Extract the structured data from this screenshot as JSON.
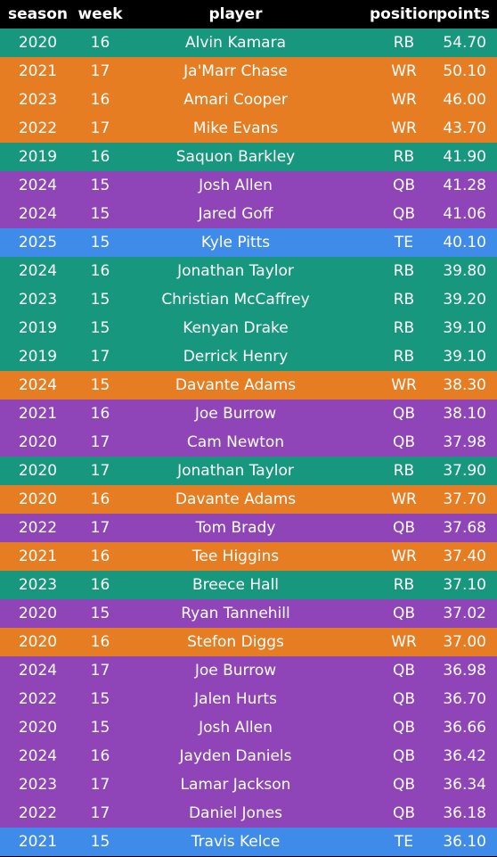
{
  "headers": {
    "season": "season",
    "week": "week",
    "player": "player",
    "position": "position",
    "points": "points"
  },
  "colors": {
    "RB": "#17977d",
    "WR": "#e67d22",
    "QB": "#8f45b8",
    "TE": "#3f8be9",
    "header_bg": "#000000",
    "text": "#ffffff"
  },
  "rows": [
    {
      "season": "2020",
      "week": "16",
      "player": "Alvin Kamara",
      "position": "RB",
      "points": "54.70"
    },
    {
      "season": "2021",
      "week": "17",
      "player": "Ja'Marr Chase",
      "position": "WR",
      "points": "50.10"
    },
    {
      "season": "2023",
      "week": "16",
      "player": "Amari Cooper",
      "position": "WR",
      "points": "46.00"
    },
    {
      "season": "2022",
      "week": "17",
      "player": "Mike Evans",
      "position": "WR",
      "points": "43.70"
    },
    {
      "season": "2019",
      "week": "16",
      "player": "Saquon Barkley",
      "position": "RB",
      "points": "41.90"
    },
    {
      "season": "2024",
      "week": "15",
      "player": "Josh Allen",
      "position": "QB",
      "points": "41.28"
    },
    {
      "season": "2024",
      "week": "15",
      "player": "Jared Goff",
      "position": "QB",
      "points": "41.06"
    },
    {
      "season": "2025",
      "week": "15",
      "player": "Kyle Pitts",
      "position": "TE",
      "points": "40.10"
    },
    {
      "season": "2024",
      "week": "16",
      "player": "Jonathan Taylor",
      "position": "RB",
      "points": "39.80"
    },
    {
      "season": "2023",
      "week": "15",
      "player": "Christian McCaffrey",
      "position": "RB",
      "points": "39.20"
    },
    {
      "season": "2019",
      "week": "15",
      "player": "Kenyan Drake",
      "position": "RB",
      "points": "39.10"
    },
    {
      "season": "2019",
      "week": "17",
      "player": "Derrick Henry",
      "position": "RB",
      "points": "39.10"
    },
    {
      "season": "2024",
      "week": "15",
      "player": "Davante Adams",
      "position": "WR",
      "points": "38.30"
    },
    {
      "season": "2021",
      "week": "16",
      "player": "Joe Burrow",
      "position": "QB",
      "points": "38.10"
    },
    {
      "season": "2020",
      "week": "17",
      "player": "Cam Newton",
      "position": "QB",
      "points": "37.98"
    },
    {
      "season": "2020",
      "week": "17",
      "player": "Jonathan Taylor",
      "position": "RB",
      "points": "37.90"
    },
    {
      "season": "2020",
      "week": "16",
      "player": "Davante Adams",
      "position": "WR",
      "points": "37.70"
    },
    {
      "season": "2022",
      "week": "17",
      "player": "Tom Brady",
      "position": "QB",
      "points": "37.68"
    },
    {
      "season": "2021",
      "week": "16",
      "player": "Tee Higgins",
      "position": "WR",
      "points": "37.40"
    },
    {
      "season": "2023",
      "week": "16",
      "player": "Breece Hall",
      "position": "RB",
      "points": "37.10"
    },
    {
      "season": "2020",
      "week": "15",
      "player": "Ryan Tannehill",
      "position": "QB",
      "points": "37.02"
    },
    {
      "season": "2020",
      "week": "16",
      "player": "Stefon Diggs",
      "position": "WR",
      "points": "37.00"
    },
    {
      "season": "2024",
      "week": "17",
      "player": "Joe Burrow",
      "position": "QB",
      "points": "36.98"
    },
    {
      "season": "2022",
      "week": "15",
      "player": "Jalen Hurts",
      "position": "QB",
      "points": "36.70"
    },
    {
      "season": "2020",
      "week": "15",
      "player": "Josh Allen",
      "position": "QB",
      "points": "36.66"
    },
    {
      "season": "2024",
      "week": "16",
      "player": "Jayden Daniels",
      "position": "QB",
      "points": "36.42"
    },
    {
      "season": "2023",
      "week": "17",
      "player": "Lamar Jackson",
      "position": "QB",
      "points": "36.34"
    },
    {
      "season": "2022",
      "week": "17",
      "player": "Daniel Jones",
      "position": "QB",
      "points": "36.18"
    },
    {
      "season": "2021",
      "week": "15",
      "player": "Travis Kelce",
      "position": "TE",
      "points": "36.10"
    }
  ]
}
